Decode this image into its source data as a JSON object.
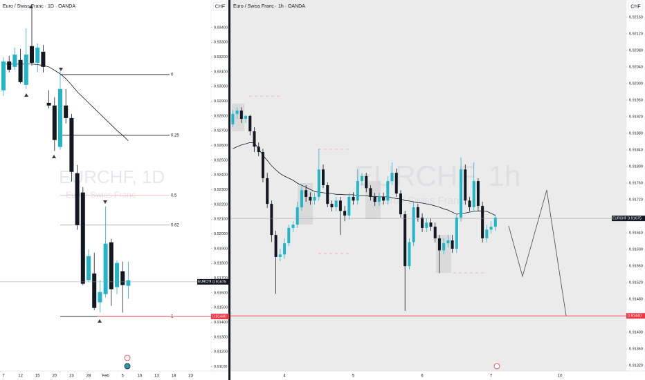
{
  "chart_data": [
    {
      "type": "candlestick",
      "title": "Euro / Swiss Franc · 1D · OANDA",
      "symbol": "EURCHF, 1D",
      "subtitle": "Euro / Swiss Franc",
      "currency": "CHF",
      "colors": {
        "up": "#22b5c9",
        "down": "#131722",
        "ma": "#131722"
      },
      "categories": [
        "7",
        null,
        null,
        "12",
        null,
        null,
        "15",
        null,
        null,
        "20",
        null,
        null,
        "23",
        null,
        null,
        "28",
        null,
        null,
        "Feb",
        null,
        null,
        "5",
        null,
        null,
        "10",
        null,
        null,
        "13",
        null,
        null,
        "18",
        null,
        null,
        "23"
      ],
      "open": [
        0.92974,
        0.9317,
        0.93133,
        0.9318,
        0.93011,
        0.93274,
        0.93161,
        0.93236,
        0.92889,
        0.92871,
        0.9259,
        0.92871,
        0.92786,
        0.92412,
        0.92281,
        0.91686,
        0.91732,
        0.91536,
        0.91592,
        0.91943,
        0.91639,
        0.91747,
        0.91648,
        null,
        null,
        null,
        null,
        null,
        null,
        null,
        null,
        null,
        null,
        null
      ],
      "high": [
        0.93199,
        0.93208,
        0.93264,
        0.93255,
        0.93395,
        0.93536,
        0.93292,
        0.93283,
        0.92974,
        0.92927,
        0.93105,
        0.92983,
        0.92814,
        0.92468,
        0.92318,
        0.91896,
        0.91873,
        0.91686,
        0.92187,
        0.91967,
        0.91821,
        0.91812,
        0.91812,
        null,
        null,
        null,
        null,
        null,
        null,
        null,
        null,
        null,
        null,
        null
      ],
      "low": [
        0.92936,
        0.93096,
        0.93114,
        0.93021,
        0.92983,
        0.93142,
        0.93096,
        0.93096,
        0.92852,
        0.92562,
        0.92571,
        0.92749,
        0.92355,
        0.92028,
        0.91653,
        0.91672,
        0.91484,
        0.91466,
        0.91569,
        0.91512,
        0.91592,
        0.91466,
        0.91559,
        null,
        null,
        null,
        null,
        null,
        null,
        null,
        null,
        null,
        null,
        null
      ],
      "close": [
        0.9317,
        0.93114,
        0.93217,
        0.9303,
        0.93217,
        0.93161,
        0.93264,
        0.93133,
        0.92871,
        0.92637,
        0.92983,
        0.92786,
        0.92421,
        0.9206,
        0.91662,
        0.9185,
        0.91498,
        0.91606,
        0.91934,
        0.91625,
        0.91803,
        0.91653,
        0.91686,
        null,
        null,
        null,
        null,
        null,
        null,
        null,
        null,
        null,
        null,
        null
      ],
      "ma": [
        0.93152,
        0.93152,
        0.93152,
        0.93152,
        0.93152,
        0.93152,
        0.93149,
        0.93142,
        0.93133,
        0.9311,
        0.93086,
        0.93053,
        0.93011,
        0.92964,
        0.92927,
        0.92889,
        0.92852,
        0.92814,
        0.92777,
        0.9274,
        0.92702,
        0.92669,
        0.92632,
        null,
        null,
        null,
        null,
        null,
        null,
        null,
        null,
        null,
        null,
        null
      ],
      "levels": [
        {
          "label": "0",
          "price": 0.93081,
          "color": "#131722"
        },
        {
          "label": "0.25",
          "price": 0.92669,
          "color": "#131722"
        },
        {
          "label": "0.5",
          "price": 0.92262,
          "color": "#f5b5bb"
        },
        {
          "label": "0.62",
          "price": 0.9206,
          "color": "#9a9a9a"
        },
        {
          "label": "1",
          "price": 0.9144,
          "color": "#131722"
        }
      ],
      "ylim": [
        0.9107,
        0.9354
      ],
      "yticks": [
        {
          "value": 0.911,
          "label": "0.91100"
        },
        {
          "value": 0.912,
          "label": "0.91200"
        },
        {
          "value": 0.913,
          "label": "0.91300"
        },
        {
          "value": 0.914,
          "label": "0.91400"
        },
        {
          "value": 0.915,
          "label": "0.91500"
        },
        {
          "value": 0.916,
          "label": "0.91600"
        },
        {
          "value": 0.917,
          "label": "0.91700"
        },
        {
          "value": 0.918,
          "label": "0.91800"
        },
        {
          "value": 0.919,
          "label": "0.91900"
        },
        {
          "value": 0.92,
          "label": "0.92000"
        },
        {
          "value": 0.921,
          "label": "0.92100"
        },
        {
          "value": 0.922,
          "label": "0.92200"
        },
        {
          "value": 0.923,
          "label": "0.92300"
        },
        {
          "value": 0.924,
          "label": "0.92400"
        },
        {
          "value": 0.925,
          "label": "0.92500"
        },
        {
          "value": 0.926,
          "label": "0.92600"
        },
        {
          "value": 0.927,
          "label": "0.92700"
        },
        {
          "value": 0.928,
          "label": "0.92800"
        },
        {
          "value": 0.929,
          "label": "0.92900"
        },
        {
          "value": 0.93,
          "label": "0.93000"
        },
        {
          "value": 0.931,
          "label": "0.93100"
        },
        {
          "value": 0.932,
          "label": "0.93200"
        },
        {
          "value": 0.933,
          "label": "0.93300"
        },
        {
          "value": 0.934,
          "label": "0.93400"
        }
      ],
      "last_price": 0.91675,
      "ticker": "EURCHF",
      "alert_level": {
        "value": 0.9144,
        "label": "0.91440"
      }
    },
    {
      "type": "candlestick",
      "title": "Euro / Swiss Franc · 1h · OANDA",
      "symbol": "EURCHF, 1h",
      "subtitle": "Euro / Swiss Franc",
      "currency": "CHF",
      "colors": {
        "up": "#22b5c9",
        "down": "#131722",
        "ma": "#131722"
      },
      "categories": [
        null,
        null,
        null,
        null,
        null,
        null,
        null,
        null,
        null,
        null,
        null,
        null,
        "4",
        null,
        null,
        null,
        null,
        null,
        null,
        null,
        null,
        null,
        null,
        null,
        null,
        null,
        null,
        null,
        "5",
        null,
        null,
        null,
        null,
        null,
        null,
        null,
        null,
        null,
        null,
        null,
        null,
        null,
        null,
        null,
        "6",
        null,
        null,
        null,
        null,
        null,
        null,
        null,
        null,
        null,
        null,
        null,
        null,
        null,
        null,
        null,
        "7",
        null,
        null,
        null,
        null,
        null,
        null,
        null,
        null,
        null,
        null,
        null,
        null,
        null,
        null,
        null,
        "10"
      ],
      "open": [
        0.91902,
        0.91927,
        0.91935,
        0.91915,
        0.91922,
        0.91885,
        0.91848,
        0.91835,
        0.91772,
        0.9171,
        0.91635,
        0.91582,
        0.91588,
        0.91615,
        0.91652,
        0.9166,
        0.91702,
        0.91743,
        0.91727,
        0.91718,
        0.91727,
        0.91793,
        0.91755,
        0.9171,
        0.91702,
        0.91718,
        0.91693,
        0.91682,
        0.91727,
        0.91718,
        0.91765,
        0.91777,
        0.91748,
        0.91727,
        0.91715,
        0.91727,
        0.91718,
        0.91765,
        0.91785,
        0.91735,
        0.91685,
        0.9156,
        0.91618,
        0.91702,
        0.91677,
        0.91652,
        0.91665,
        0.91655,
        0.91627,
        0.91598,
        0.91615,
        0.91622,
        0.91602,
        0.91677,
        0.91793,
        0.91718,
        0.91702,
        0.91765,
        0.91705,
        0.91627,
        0.91648,
        0.91655,
        null,
        null,
        null,
        null,
        null,
        null,
        null,
        null,
        null,
        null,
        null,
        null,
        null,
        null,
        null
      ],
      "high": [
        0.91937,
        0.91943,
        0.91943,
        0.91925,
        0.91925,
        0.91895,
        0.91858,
        0.91843,
        0.91785,
        0.91718,
        0.91645,
        0.91602,
        0.91627,
        0.9166,
        0.91668,
        0.91715,
        0.91755,
        0.91755,
        0.91738,
        0.91737,
        0.91843,
        0.91805,
        0.91762,
        0.91718,
        0.91727,
        0.91727,
        0.91705,
        0.91737,
        0.91738,
        0.91793,
        0.91785,
        0.91785,
        0.91755,
        0.91737,
        0.91737,
        0.91737,
        0.91777,
        0.9181,
        0.91795,
        0.91743,
        0.91693,
        0.91627,
        0.91715,
        0.9171,
        0.91687,
        0.91675,
        0.91675,
        0.91665,
        0.91635,
        0.91627,
        0.91635,
        0.91635,
        0.91687,
        0.91822,
        0.91805,
        0.91727,
        0.9181,
        0.91772,
        0.91715,
        0.9166,
        0.91668,
        0.91685,
        null,
        null,
        null,
        null,
        null,
        null,
        null,
        null,
        null,
        null,
        null,
        null,
        null,
        null,
        null
      ],
      "low": [
        0.91895,
        0.91915,
        0.91905,
        0.91905,
        0.91875,
        0.91835,
        0.91825,
        0.91762,
        0.917,
        0.91618,
        0.91493,
        0.91572,
        0.91578,
        0.91608,
        0.91642,
        0.91652,
        0.91693,
        0.91715,
        0.91708,
        0.91708,
        0.91718,
        0.91748,
        0.91702,
        0.91692,
        0.91692,
        0.91635,
        0.91668,
        0.91672,
        0.91708,
        0.91708,
        0.91755,
        0.91738,
        0.91718,
        0.91705,
        0.91705,
        0.91708,
        0.91708,
        0.91755,
        0.91727,
        0.91677,
        0.91452,
        0.91552,
        0.91608,
        0.91667,
        0.91642,
        0.91642,
        0.91645,
        0.91617,
        0.91543,
        0.91588,
        0.91605,
        0.91592,
        0.91592,
        0.91667,
        0.91708,
        0.91692,
        0.91692,
        0.91693,
        0.91617,
        0.91617,
        0.91638,
        0.91645,
        null,
        null,
        null,
        null,
        null,
        null,
        null,
        null,
        null,
        null,
        null,
        null,
        null,
        null,
        null
      ],
      "close": [
        0.91927,
        0.91935,
        0.91915,
        0.91922,
        0.91885,
        0.91848,
        0.91835,
        0.91772,
        0.9171,
        0.91635,
        0.91582,
        0.91588,
        0.91615,
        0.91652,
        0.9166,
        0.91702,
        0.91743,
        0.91727,
        0.91718,
        0.91727,
        0.91793,
        0.91755,
        0.9171,
        0.91702,
        0.91718,
        0.91693,
        0.91682,
        0.91727,
        0.91718,
        0.91765,
        0.91777,
        0.91748,
        0.91727,
        0.91715,
        0.91727,
        0.91718,
        0.91765,
        0.91785,
        0.91735,
        0.91685,
        0.9156,
        0.91618,
        0.91702,
        0.91677,
        0.91652,
        0.91665,
        0.91655,
        0.91627,
        0.91598,
        0.91615,
        0.91622,
        0.91602,
        0.91677,
        0.91793,
        0.91718,
        0.91702,
        0.91765,
        0.91705,
        0.91627,
        0.91648,
        0.91655,
        0.91677,
        null,
        null,
        null,
        null,
        null,
        null,
        null,
        null,
        null,
        null,
        null,
        null,
        null,
        null,
        null
      ],
      "ma": [
        0.91843,
        0.91848,
        0.91852,
        0.91855,
        0.91858,
        0.91857,
        0.91843,
        0.91827,
        0.91815,
        0.91802,
        0.91792,
        0.91783,
        0.91777,
        0.91772,
        0.91767,
        0.9176,
        0.91755,
        0.9175,
        0.91745,
        0.9174,
        0.91738,
        0.91737,
        0.91735,
        0.91735,
        0.91733,
        0.91733,
        0.91732,
        0.91732,
        0.91732,
        0.9173,
        0.9173,
        0.9173,
        0.91728,
        0.91728,
        0.91727,
        0.91727,
        0.91727,
        0.91725,
        0.91723,
        0.91722,
        0.91718,
        0.91717,
        0.91715,
        0.91713,
        0.91712,
        0.9171,
        0.91708,
        0.91705,
        0.91702,
        0.91698,
        0.91695,
        0.9169,
        0.91685,
        0.91687,
        0.91688,
        0.9169,
        0.91692,
        0.91693,
        0.91693,
        0.91692,
        0.91687,
        0.91682,
        null,
        null,
        null,
        null,
        null,
        null,
        null,
        null,
        null,
        null,
        null,
        null,
        null,
        null,
        null
      ],
      "ylim": [
        0.91307,
        0.92185
      ],
      "yticks": [
        {
          "value": 0.9132,
          "label": "0.91320"
        },
        {
          "value": 0.9136,
          "label": "0.91360"
        },
        {
          "value": 0.914,
          "label": "0.91400"
        },
        {
          "value": 0.9148,
          "label": "0.91480"
        },
        {
          "value": 0.9152,
          "label": "0.91520"
        },
        {
          "value": 0.9156,
          "label": "0.91560"
        },
        {
          "value": 0.916,
          "label": "0.91600"
        },
        {
          "value": 0.9164,
          "label": "0.91640"
        },
        {
          "value": 0.9172,
          "label": "0.91720"
        },
        {
          "value": 0.9176,
          "label": "0.91760"
        },
        {
          "value": 0.918,
          "label": "0.91800"
        },
        {
          "value": 0.9184,
          "label": "0.91840"
        },
        {
          "value": 0.9188,
          "label": "0.91880"
        },
        {
          "value": 0.9192,
          "label": "0.91920"
        },
        {
          "value": 0.9196,
          "label": "0.91960"
        },
        {
          "value": 0.92,
          "label": "0.92000"
        },
        {
          "value": 0.9204,
          "label": "0.92040"
        },
        {
          "value": 0.9208,
          "label": "0.92080"
        },
        {
          "value": 0.9212,
          "label": "0.92120"
        },
        {
          "value": 0.9216,
          "label": "0.92160"
        }
      ],
      "last_price": 0.91675,
      "ticker": "EURCHF",
      "alert_level": {
        "value": 0.9144,
        "label": "0.91440"
      }
    }
  ]
}
